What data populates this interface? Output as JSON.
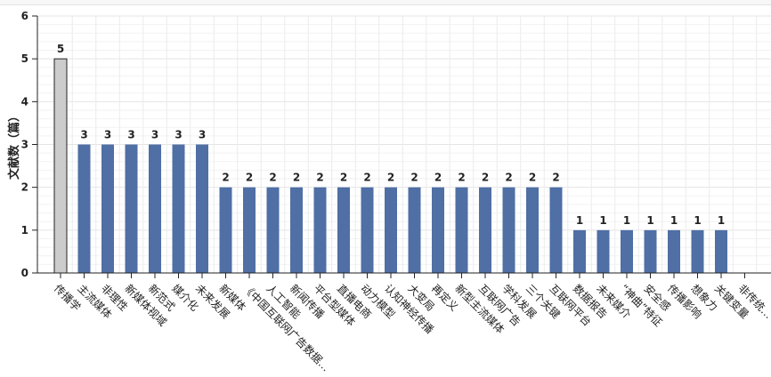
{
  "chart_data": {
    "type": "bar",
    "title": "",
    "xlabel": "",
    "ylabel": "文献数（篇）",
    "ylim": [
      0,
      6
    ],
    "yticks": [
      0,
      1,
      2,
      3,
      4,
      5,
      6
    ],
    "grid": true,
    "colors": {
      "bar": "#4f6fa5",
      "highlight": "#cccccc",
      "highlight_stroke": "#222222"
    },
    "categories": [
      "传播学",
      "主流媒体",
      "非理性",
      "新媒体视域",
      "新范式",
      "媒介化",
      "未来发展",
      "新媒体",
      "《中国互联网广告数据…",
      "人工智能",
      "新闻传播",
      "平台型媒体",
      "直播电商",
      "动力模型",
      "认知神经传播",
      "大变局",
      "再定义",
      "新型主流媒体",
      "互联网广告",
      "学科发展",
      "三个关键",
      "互联网平台",
      "数据报告",
      "未来媒介",
      "“神曲”特征",
      "安全感",
      "传播影响",
      "想象力",
      "关键变量",
      "非传统…"
    ],
    "values": [
      5,
      3,
      3,
      3,
      3,
      3,
      3,
      2,
      2,
      2,
      2,
      2,
      2,
      2,
      2,
      2,
      2,
      2,
      2,
      2,
      2,
      2,
      1,
      1,
      1,
      1,
      1,
      1,
      1,
      null
    ]
  }
}
